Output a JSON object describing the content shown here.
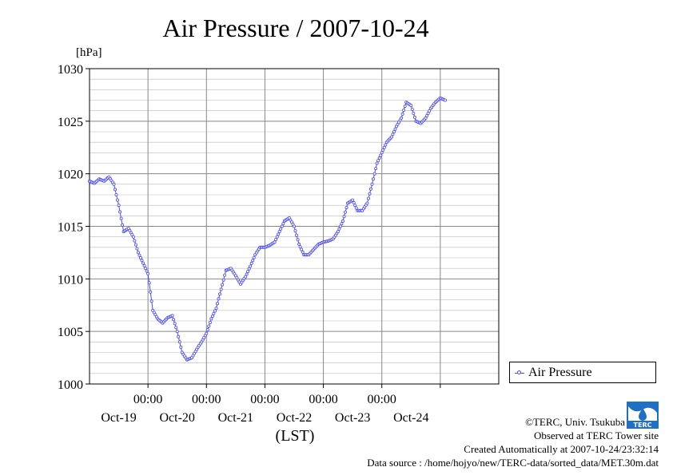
{
  "title": "Air Pressure / 2007-10-24",
  "unit_label": "[hPa]",
  "xlabel": "(LST)",
  "legend": {
    "label": "Air Pressure"
  },
  "credits": {
    "copyright": "©TERC, Univ. Tsukuba",
    "observed": "Observed at TERC Tower site",
    "created": "Created Automatically at 2007-10-24/23:32:14",
    "source": "Data source : /home/hojyo/new/TERC-data/sorted_data/MET.30m.dat"
  },
  "logo_text": "TERC",
  "colors": {
    "series": "#4a4aff",
    "grid": "#aaaaaa",
    "logo": "#1f6fc4"
  },
  "chart_data": {
    "type": "line",
    "title": "Air Pressure / 2007-10-24",
    "ylabel": "[hPa]",
    "xlabel": "(LST)",
    "ylim": [
      1000,
      1030
    ],
    "y_ticks": [
      1000,
      1005,
      1010,
      1015,
      1020,
      1025,
      1030
    ],
    "xlim_days": [
      "2007-10-18 00:00",
      "2007-10-25 00:00"
    ],
    "x_time_labels": [
      "00:00",
      "00:00",
      "00:00",
      "00:00",
      "00:00"
    ],
    "x_day_labels": [
      "Oct-19",
      "Oct-20",
      "Oct-21",
      "Oct-22",
      "Oct-23",
      "Oct-24"
    ],
    "grid": true,
    "legend_position": "bottom-right",
    "series": [
      {
        "name": "Air Pressure",
        "points": [
          [
            "10-18 00:00",
            1019.3
          ],
          [
            "10-18 02:00",
            1019.1
          ],
          [
            "10-18 04:00",
            1019.5
          ],
          [
            "10-18 06:00",
            1019.3
          ],
          [
            "10-18 08:00",
            1019.7
          ],
          [
            "10-18 10:00",
            1019.0
          ],
          [
            "10-18 12:00",
            1017.0
          ],
          [
            "10-18 14:00",
            1014.5
          ],
          [
            "10-18 16:00",
            1014.8
          ],
          [
            "10-18 18:00",
            1014.0
          ],
          [
            "10-18 20:00",
            1012.5
          ],
          [
            "10-18 22:00",
            1011.5
          ],
          [
            "10-19 00:00",
            1010.5
          ],
          [
            "10-19 02:00",
            1007.0
          ],
          [
            "10-19 04:00",
            1006.2
          ],
          [
            "10-19 06:00",
            1005.8
          ],
          [
            "10-19 08:00",
            1006.3
          ],
          [
            "10-19 10:00",
            1006.5
          ],
          [
            "10-19 12:00",
            1005.0
          ],
          [
            "10-19 14:00",
            1003.0
          ],
          [
            "10-19 16:00",
            1002.3
          ],
          [
            "10-19 18:00",
            1002.5
          ],
          [
            "10-19 20:00",
            1003.3
          ],
          [
            "10-19 22:00",
            1004.0
          ],
          [
            "10-20 00:00",
            1004.8
          ],
          [
            "10-20 02:00",
            1006.2
          ],
          [
            "10-20 04:00",
            1007.2
          ],
          [
            "10-20 06:00",
            1009.0
          ],
          [
            "10-20 08:00",
            1010.8
          ],
          [
            "10-20 10:00",
            1011.0
          ],
          [
            "10-20 12:00",
            1010.3
          ],
          [
            "10-20 14:00",
            1009.5
          ],
          [
            "10-20 16:00",
            1010.2
          ],
          [
            "10-20 18:00",
            1011.2
          ],
          [
            "10-20 20:00",
            1012.3
          ],
          [
            "10-20 22:00",
            1013.0
          ],
          [
            "10-21 00:00",
            1013.0
          ],
          [
            "10-21 02:00",
            1013.2
          ],
          [
            "10-21 04:00",
            1013.5
          ],
          [
            "10-21 06:00",
            1014.5
          ],
          [
            "10-21 08:00",
            1015.5
          ],
          [
            "10-21 10:00",
            1015.8
          ],
          [
            "10-21 12:00",
            1015.0
          ],
          [
            "10-21 14:00",
            1013.3
          ],
          [
            "10-21 16:00",
            1012.3
          ],
          [
            "10-21 18:00",
            1012.3
          ],
          [
            "10-21 20:00",
            1012.8
          ],
          [
            "10-21 22:00",
            1013.3
          ],
          [
            "10-22 00:00",
            1013.5
          ],
          [
            "10-22 02:00",
            1013.6
          ],
          [
            "10-22 04:00",
            1013.8
          ],
          [
            "10-22 06:00",
            1014.5
          ],
          [
            "10-22 08:00",
            1015.5
          ],
          [
            "10-22 10:00",
            1017.2
          ],
          [
            "10-22 12:00",
            1017.5
          ],
          [
            "10-22 14:00",
            1016.5
          ],
          [
            "10-22 16:00",
            1016.5
          ],
          [
            "10-22 18:00",
            1017.2
          ],
          [
            "10-22 20:00",
            1019.0
          ],
          [
            "10-22 22:00",
            1021.0
          ],
          [
            "10-23 00:00",
            1022.0
          ],
          [
            "10-23 02:00",
            1023.0
          ],
          [
            "10-23 04:00",
            1023.5
          ],
          [
            "10-23 06:00",
            1024.5
          ],
          [
            "10-23 08:00",
            1025.3
          ],
          [
            "10-23 10:00",
            1026.8
          ],
          [
            "10-23 12:00",
            1026.5
          ],
          [
            "10-23 14:00",
            1025.0
          ],
          [
            "10-23 16:00",
            1024.8
          ],
          [
            "10-23 18:00",
            1025.3
          ],
          [
            "10-23 20:00",
            1026.2
          ],
          [
            "10-23 22:00",
            1026.8
          ],
          [
            "10-24 00:00",
            1027.2
          ],
          [
            "10-24 02:00",
            1027.0
          ]
        ]
      }
    ]
  }
}
